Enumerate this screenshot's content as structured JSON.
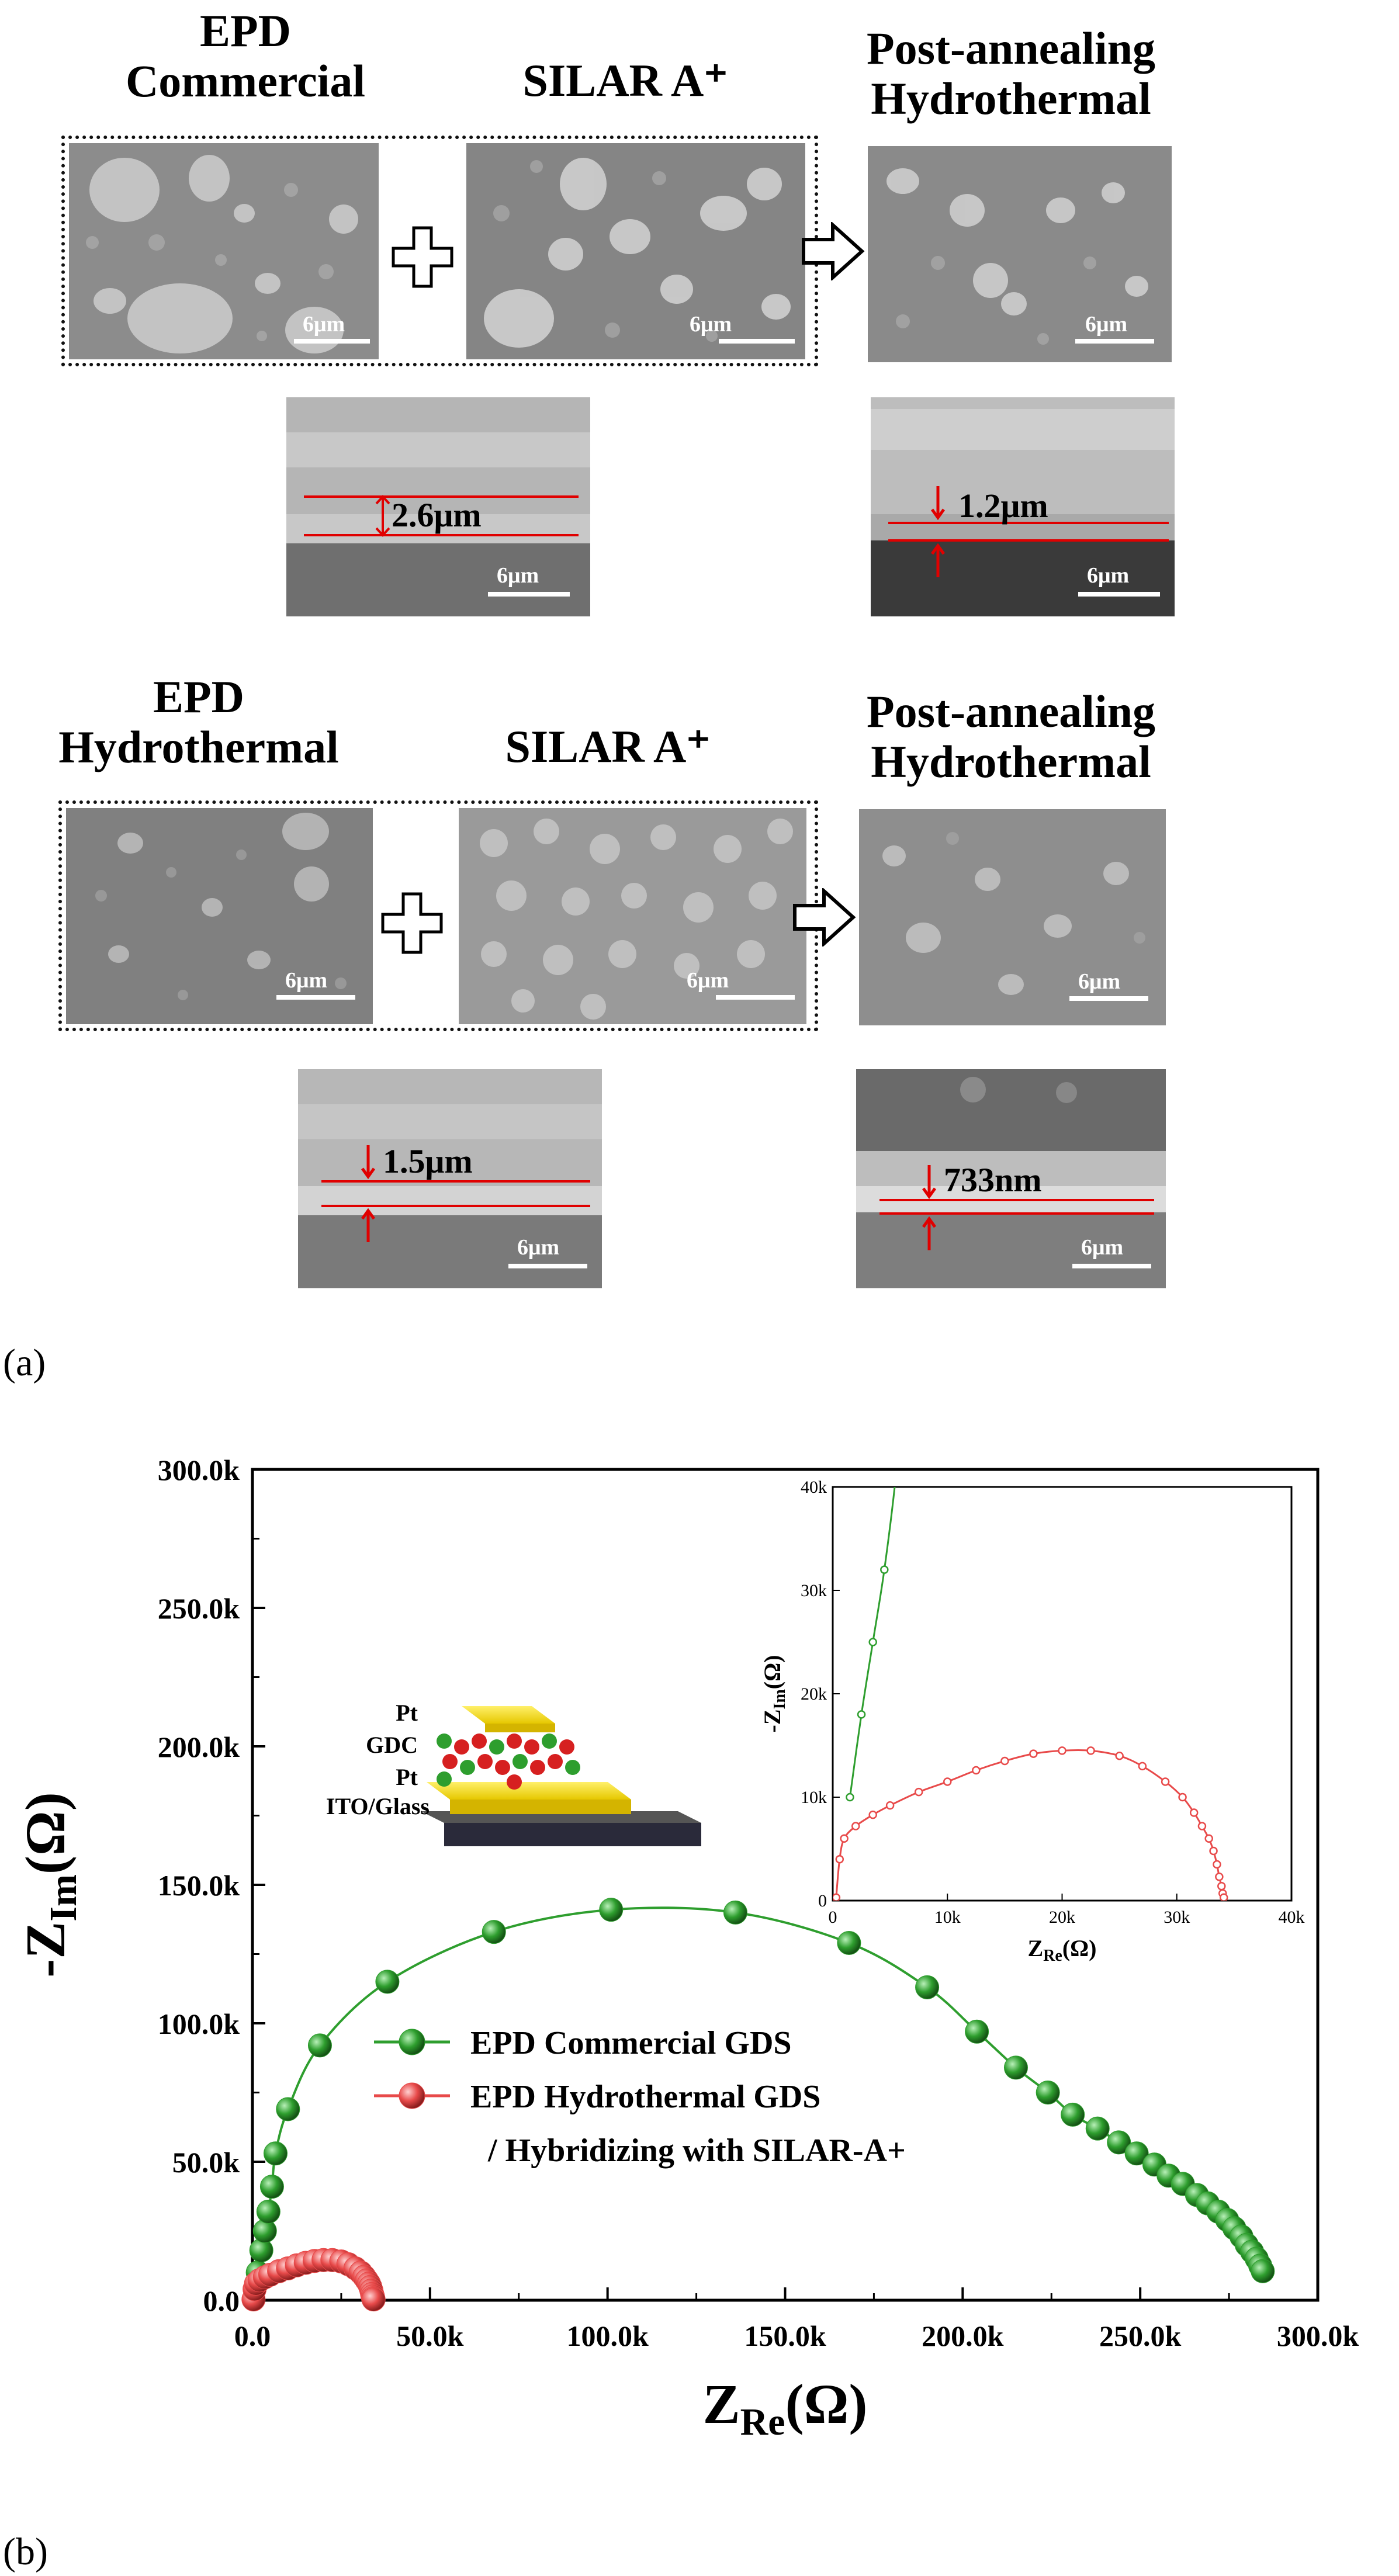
{
  "panel_a": {
    "label": "(a)",
    "row1": {
      "left_header_line1": "EPD",
      "left_header_line2": "Commercial",
      "mid_header": "SILAR A⁺",
      "right_header_line1": "Post-annealing",
      "right_header_line2": "Hydrothermal",
      "scale": "6μm",
      "cross_left_thickness": "2.6μm",
      "cross_right_thickness": "1.2μm"
    },
    "row2": {
      "left_header_line1": "EPD",
      "left_header_line2": "Hydrothermal",
      "mid_header": "SILAR A⁺",
      "right_header_line1": "Post-annealing",
      "right_header_line2": "Hydrothermal",
      "scale": "6μm",
      "cross_left_thickness": "1.5μm",
      "cross_right_thickness": "733nm"
    }
  },
  "panel_b": {
    "label": "(b)",
    "schematic_labels": [
      "Pt",
      "GDC",
      "Pt",
      "ITO/Glass"
    ]
  },
  "colors": {
    "green": "#2e9e2e",
    "red": "#e84a4a",
    "arrow_red": "#e00000"
  },
  "chart_data": {
    "type": "scatter",
    "xlabel_main": "Z",
    "xlabel_sub": "Re",
    "xlabel_unit": "(Ω)",
    "ylabel_prefix": "-Z",
    "ylabel_sub": "Im",
    "ylabel_unit": "(Ω)",
    "xlim": [
      0,
      300000
    ],
    "ylim": [
      0,
      300000
    ],
    "xticks": [
      "0.0",
      "50.0k",
      "100.0k",
      "150.0k",
      "200.0k",
      "250.0k",
      "300.0k"
    ],
    "yticks": [
      "0.0",
      "50.0k",
      "100.0k",
      "150.0k",
      "200.0k",
      "250.0k",
      "300.0k"
    ],
    "legend_placement": "lower-left",
    "series": [
      {
        "name": "EPD Commercial GDS",
        "color": "#2e9e2e",
        "points": [
          [
            1500,
            10000
          ],
          [
            2500,
            18000
          ],
          [
            3500,
            25000
          ],
          [
            4500,
            32000
          ],
          [
            5500,
            41000
          ],
          [
            6500,
            53000
          ],
          [
            10000,
            69000
          ],
          [
            19000,
            92000
          ],
          [
            38000,
            115000
          ],
          [
            68000,
            133000
          ],
          [
            101000,
            141000
          ],
          [
            136000,
            140000
          ],
          [
            168000,
            129000
          ],
          [
            190000,
            113000
          ],
          [
            204000,
            97000
          ],
          [
            215000,
            84000
          ],
          [
            224000,
            75000
          ],
          [
            231000,
            67000
          ],
          [
            238000,
            62000
          ],
          [
            244000,
            57000
          ],
          [
            249000,
            53000
          ],
          [
            254000,
            49000
          ],
          [
            258000,
            45000
          ],
          [
            262000,
            42000
          ],
          [
            266000,
            38000
          ],
          [
            269000,
            35000
          ],
          [
            272000,
            32000
          ],
          [
            274500,
            29000
          ],
          [
            276500,
            26000
          ],
          [
            278500,
            23000
          ],
          [
            280000,
            20000
          ],
          [
            281500,
            17500
          ],
          [
            282800,
            15000
          ],
          [
            283800,
            12500
          ],
          [
            284500,
            10500
          ]
        ]
      },
      {
        "name": "EPD Hydrothermal GDS",
        "name_line2": "/ Hybridizing with SILAR-A+",
        "color": "#e84a4a",
        "points": [
          [
            300,
            300
          ],
          [
            600,
            4000
          ],
          [
            1000,
            6000
          ],
          [
            2000,
            7200
          ],
          [
            3500,
            8300
          ],
          [
            5000,
            9200
          ],
          [
            7500,
            10500
          ],
          [
            10000,
            11500
          ],
          [
            12500,
            12600
          ],
          [
            15000,
            13500
          ],
          [
            17500,
            14200
          ],
          [
            20000,
            14500
          ],
          [
            22500,
            14500
          ],
          [
            25000,
            14000
          ],
          [
            27000,
            13000
          ],
          [
            29000,
            11500
          ],
          [
            30500,
            10000
          ],
          [
            31500,
            8500
          ],
          [
            32200,
            7200
          ],
          [
            32800,
            6000
          ],
          [
            33200,
            4800
          ],
          [
            33500,
            3500
          ],
          [
            33700,
            2300
          ],
          [
            33900,
            1400
          ],
          [
            34000,
            700
          ],
          [
            34100,
            300
          ]
        ]
      }
    ],
    "inset": {
      "xlabel_main": "Z",
      "xlabel_sub": "Re",
      "xlabel_unit": "(Ω)",
      "ylabel_prefix": "-Z",
      "ylabel_sub": "Im",
      "ylabel_unit": "(Ω)",
      "xlim": [
        0,
        40000
      ],
      "ylim": [
        0,
        40000
      ],
      "xticks": [
        "0",
        "10k",
        "20k",
        "30k",
        "40k"
      ],
      "yticks": [
        "0",
        "10k",
        "20k",
        "30k",
        "40k"
      ]
    }
  }
}
